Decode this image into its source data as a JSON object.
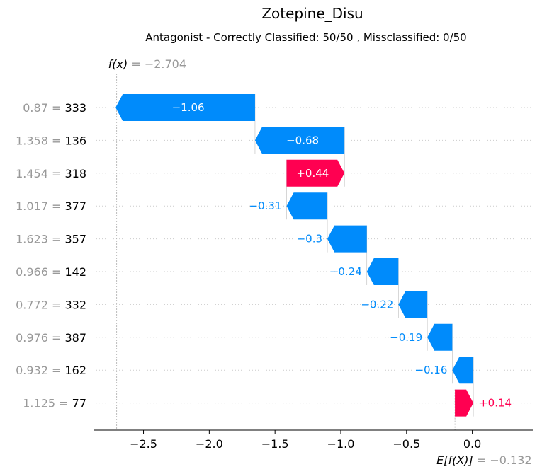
{
  "chart_data": {
    "type": "waterfall",
    "title": "Zotepine_Disu",
    "subtitle": "Antagonist - Correctly Classified: 50/50 , Missclassified: 0/50",
    "base_value": -0.132,
    "base_label": "E[f(X)]",
    "base_value_text": "= −0.132",
    "output_value": -2.704,
    "output_label": "f(x)",
    "output_value_text": "= −2.704",
    "xlim": [
      -2.88,
      0.46
    ],
    "xticks": [
      -2.5,
      -2.0,
      -1.5,
      -1.0,
      -0.5,
      0.0
    ],
    "xtick_labels": [
      "−2.5",
      "−2.0",
      "−1.5",
      "−1.0",
      "−0.5",
      "0.0"
    ],
    "grid": "horizontal dotted",
    "features": [
      {
        "value": "0.87",
        "name": "333",
        "contribution": -1.06,
        "label": "−1.06"
      },
      {
        "value": "1.358",
        "name": "136",
        "contribution": -0.68,
        "label": "−0.68"
      },
      {
        "value": "1.454",
        "name": "318",
        "contribution": 0.44,
        "label": "+0.44"
      },
      {
        "value": "1.017",
        "name": "377",
        "contribution": -0.31,
        "label": "−0.31"
      },
      {
        "value": "1.623",
        "name": "357",
        "contribution": -0.3,
        "label": "−0.3"
      },
      {
        "value": "0.966",
        "name": "142",
        "contribution": -0.24,
        "label": "−0.24"
      },
      {
        "value": "0.772",
        "name": "332",
        "contribution": -0.22,
        "label": "−0.22"
      },
      {
        "value": "0.976",
        "name": "387",
        "contribution": -0.19,
        "label": "−0.19"
      },
      {
        "value": "0.932",
        "name": "162",
        "contribution": -0.16,
        "label": "−0.16"
      },
      {
        "value": "1.125",
        "name": "77",
        "contribution": 0.14,
        "label": "+0.14"
      }
    ],
    "colors": {
      "positive": "#ff0051",
      "negative": "#008bfb",
      "muted": "#999999"
    }
  }
}
